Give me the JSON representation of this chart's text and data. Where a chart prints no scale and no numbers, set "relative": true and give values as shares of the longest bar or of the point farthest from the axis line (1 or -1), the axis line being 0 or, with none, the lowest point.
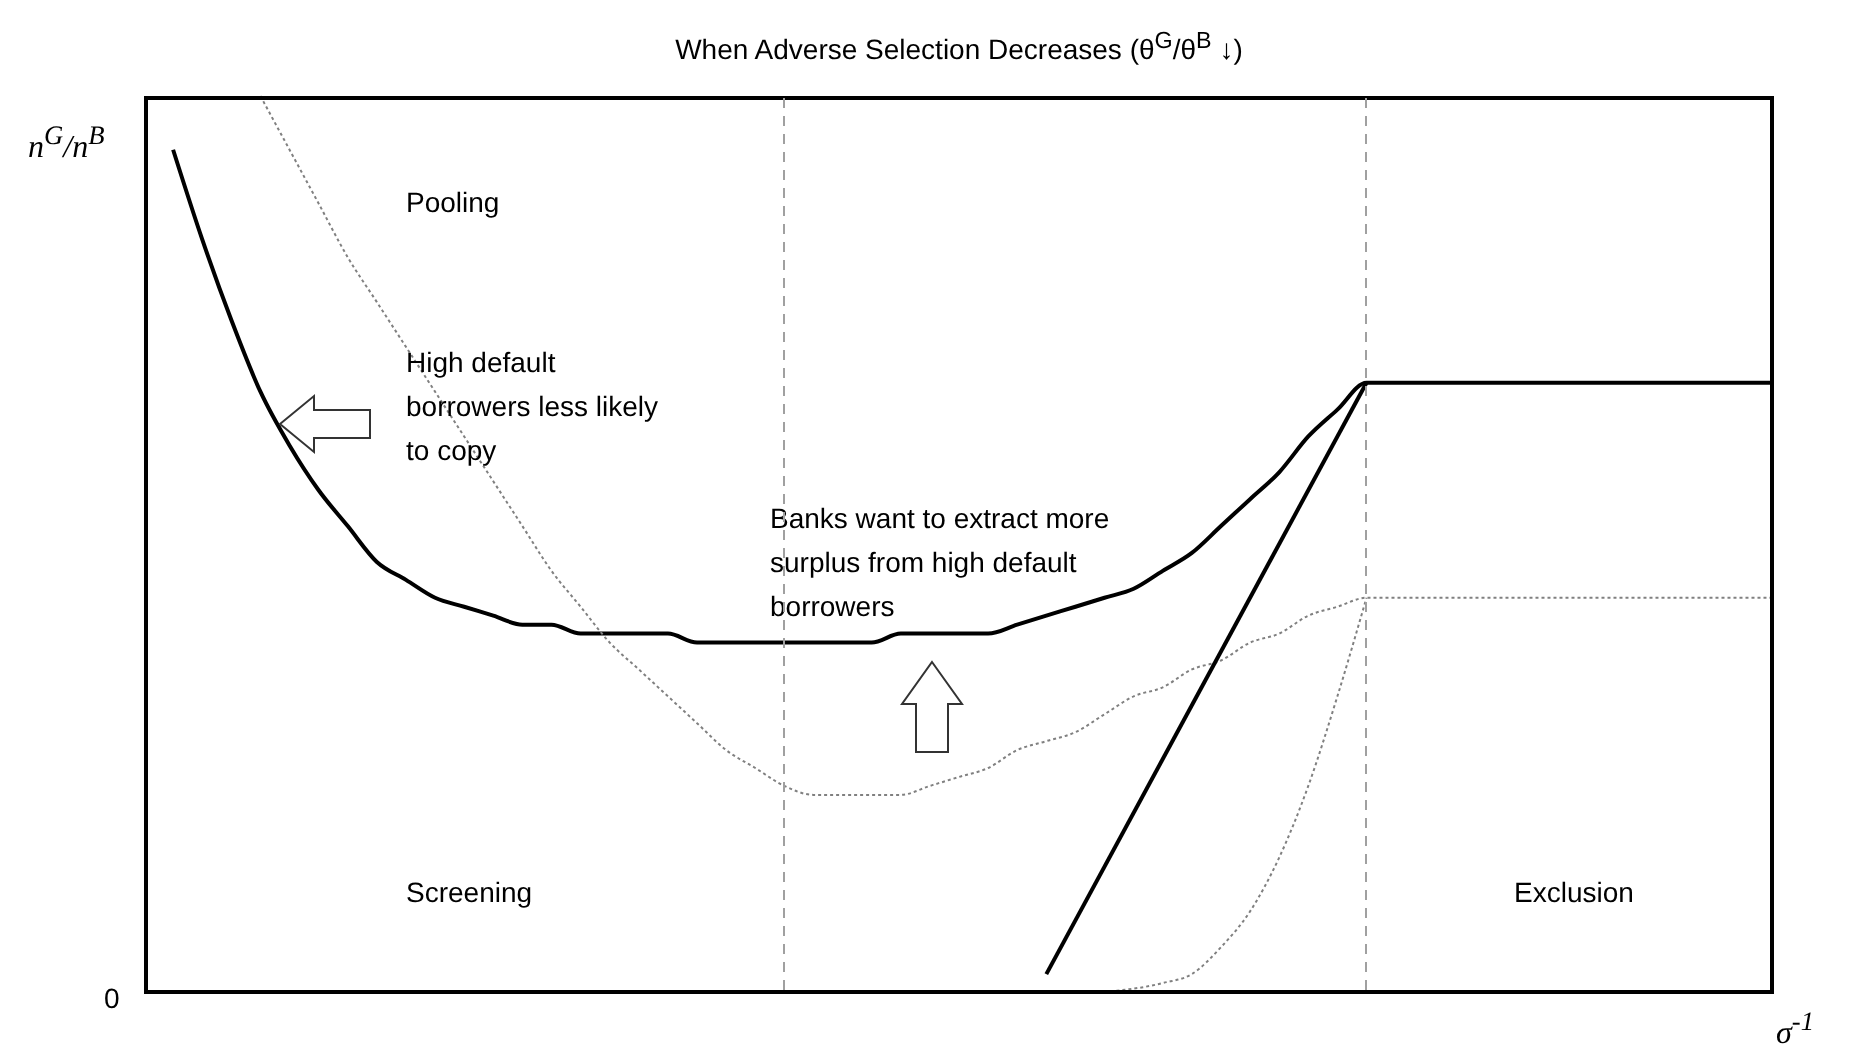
{
  "chart_data": {
    "type": "line",
    "relative": true,
    "title": "When Adverse Selection Decreases (θ$^{G}$/θ$^{B}$ ↓)",
    "xlabel": "σ$^{-1}$",
    "ylabel": "n$^{G}$/n$^{B}$",
    "categories": [
      null,
      null,
      null,
      null,
      null,
      null,
      null,
      null,
      null,
      null,
      null,
      null,
      null,
      null,
      null,
      null,
      null,
      null,
      null,
      null,
      null,
      null,
      null,
      null,
      null,
      null,
      null,
      null,
      null,
      null,
      null,
      null,
      null,
      null,
      null,
      null,
      null,
      null,
      null,
      null,
      null,
      null,
      null,
      null,
      null,
      null,
      null,
      null,
      null,
      null,
      null,
      null,
      null,
      null,
      null,
      null,
      null
    ],
    "series": [
      {
        "color": "#000000",
        "line_style": "solid",
        "values": [
          null,
          0.94,
          0.84,
          0.75,
          0.67,
          0.61,
          0.56,
          0.52,
          0.48,
          0.46,
          0.44,
          0.43,
          0.42,
          0.41,
          0.41,
          0.4,
          0.4,
          0.4,
          0.4,
          0.39,
          0.39,
          0.39,
          0.39,
          0.39,
          0.39,
          0.39,
          0.4,
          0.4,
          0.4,
          0.4,
          0.41,
          0.42,
          0.43,
          0.44,
          0.45,
          0.47,
          0.49,
          0.52,
          0.55,
          0.58,
          0.62,
          0.65,
          0.68,
          null,
          null,
          null,
          null,
          null,
          null,
          null,
          null,
          null,
          null,
          null,
          null,
          null,
          0.68
        ]
      },
      {
        "color": "#808080",
        "line_style": "dotted",
        "values": [
          null,
          null,
          null,
          null,
          1.0,
          0.94,
          0.88,
          0.82,
          0.77,
          0.72,
          0.67,
          0.62,
          0.57,
          0.52,
          0.47,
          0.43,
          0.39,
          0.36,
          0.33,
          0.3,
          0.27,
          0.25,
          0.23,
          0.22,
          0.22,
          0.22,
          0.22,
          0.23,
          0.24,
          0.25,
          0.27,
          0.28,
          0.29,
          0.31,
          0.33,
          0.34,
          0.36,
          0.37,
          0.39,
          0.4,
          0.42,
          0.43,
          0.44,
          null,
          null,
          null,
          null,
          null,
          null,
          null,
          null,
          null,
          null,
          null,
          null,
          null,
          0.44
        ]
      },
      {
        "color": "#000000",
        "line_style": "solid",
        "values": [
          null,
          null,
          null,
          null,
          null,
          null,
          null,
          null,
          null,
          null,
          null,
          null,
          null,
          null,
          null,
          null,
          null,
          null,
          null,
          null,
          null,
          null,
          null,
          null,
          null,
          null,
          null,
          null,
          null,
          null,
          null,
          0.02,
          null,
          null,
          null,
          null,
          null,
          null,
          null,
          null,
          null,
          null,
          0.68,
          null,
          null,
          null,
          null,
          null,
          null,
          null,
          null,
          null,
          null,
          null,
          null,
          null,
          null
        ]
      },
      {
        "color": "#808080",
        "line_style": "dotted",
        "values": [
          null,
          null,
          null,
          null,
          null,
          null,
          null,
          null,
          null,
          null,
          null,
          null,
          null,
          null,
          null,
          null,
          null,
          null,
          null,
          null,
          null,
          null,
          null,
          null,
          null,
          null,
          null,
          null,
          null,
          null,
          null,
          null,
          null,
          0,
          null,
          0.01,
          0.02,
          0.05,
          0.09,
          0.15,
          0.23,
          0.33,
          0.44,
          null,
          null,
          null,
          null,
          null,
          null,
          null,
          null,
          null,
          null,
          null,
          null,
          null,
          null
        ]
      }
    ],
    "annotations": [
      "Pooling",
      "High default borrowers less likely to copy",
      "Banks want to extract more surplus from high default borrowers",
      "Screening",
      "Exclusion",
      "0"
    ]
  }
}
